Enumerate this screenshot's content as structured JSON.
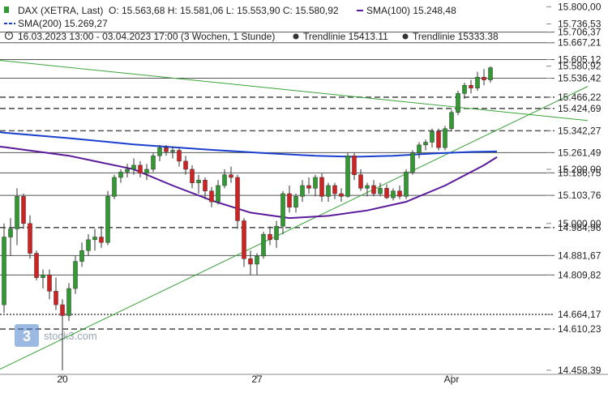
{
  "header": {
    "instrument": "DAX (XETRA, Last)",
    "ohlc": "O: 15.563,68  H: 15.581,06  L: 15.553,90  C: 15.580,92",
    "sma100": "SMA(100)  15.248,48",
    "sma200": "SMA(200)  15.269,27",
    "range": "16.03.2023 13:00 - 03.04.2023 17:00   (3 Wochen, 1 Stunde)",
    "trend1": "Trendlinie  15413.11",
    "trend2": "Trendlinie  15333.38"
  },
  "watermark": "stock3.com",
  "colors": {
    "up": "#2f9a2f",
    "down": "#d42020",
    "sma100": "#5a1a9a",
    "sma200": "#1a3fcf",
    "trend": "#3aa33a",
    "level": "#555555"
  },
  "chart_data": {
    "type": "candlestick",
    "y_range": [
      14440,
      15810
    ],
    "x_tick_labels": [
      {
        "label": "20",
        "bar": 9
      },
      {
        "label": "27",
        "bar": 39
      },
      {
        "label": "Apr",
        "bar": 69
      }
    ],
    "price_labels": [
      {
        "value": 15800.0,
        "label": "15.800,00"
      },
      {
        "value": 15736.53,
        "label": "15.736,53"
      },
      {
        "value": 15706.37,
        "label": "15.706,37"
      },
      {
        "value": 15667.21,
        "label": "15.667,21"
      },
      {
        "value": 15605.12,
        "label": "15.605,12"
      },
      {
        "value": 15580.92,
        "label": "15.580,92"
      },
      {
        "value": 15536.42,
        "label": "15.536,42"
      },
      {
        "value": 15466.22,
        "label": "15.466,22"
      },
      {
        "value": 15424.69,
        "label": "15.424,69"
      },
      {
        "value": 15342.27,
        "label": "15.342,27"
      },
      {
        "value": 15261.49,
        "label": "15.261,49"
      },
      {
        "value": 15200.0,
        "label": "15.200,00"
      },
      {
        "value": 15186.75,
        "label": "15.186,75"
      },
      {
        "value": 15103.76,
        "label": "15.103,76"
      },
      {
        "value": 15000.0,
        "label": "15.000,00"
      },
      {
        "value": 14984.96,
        "label": "14.984,96"
      },
      {
        "value": 14881.67,
        "label": "14.881,67"
      },
      {
        "value": 14809.82,
        "label": "14.809,82"
      },
      {
        "value": 14664.17,
        "label": "14.664,17"
      },
      {
        "value": 14610.23,
        "label": "14.610,23"
      },
      {
        "value": 14458.39,
        "label": "14.458,39"
      }
    ],
    "levels": [
      {
        "value": 15706.37,
        "style": "solid"
      },
      {
        "value": 15667.21,
        "style": "solid"
      },
      {
        "value": 15605.12,
        "style": "solid"
      },
      {
        "value": 15536.42,
        "style": "solid"
      },
      {
        "value": 15466.22,
        "style": "dashed"
      },
      {
        "value": 15424.69,
        "style": "dashed"
      },
      {
        "value": 15342.27,
        "style": "dashed"
      },
      {
        "value": 15261.49,
        "style": "solid"
      },
      {
        "value": 15186.75,
        "style": "solid"
      },
      {
        "value": 15103.76,
        "style": "solid"
      },
      {
        "value": 14984.96,
        "style": "dashed"
      },
      {
        "value": 14881.67,
        "style": "solid"
      },
      {
        "value": 14809.82,
        "style": "solid"
      },
      {
        "value": 14664.17,
        "style": "dotted"
      },
      {
        "value": 14610.23,
        "style": "dashed"
      }
    ],
    "trendlines": [
      {
        "name": "Trendlinie 15413.11",
        "from": {
          "bar": -8,
          "value": 15620
        },
        "to": {
          "bar": 90,
          "value": 15380
        }
      },
      {
        "name": "Trendlinie 15333.38",
        "from": {
          "bar": -1,
          "value": 14458
        },
        "to": {
          "bar": 90,
          "value": 15506
        }
      }
    ],
    "sma200": [
      [
        -8,
        15360
      ],
      [
        0,
        15335
      ],
      [
        10,
        15315
      ],
      [
        20,
        15292
      ],
      [
        30,
        15275
      ],
      [
        40,
        15260
      ],
      [
        48,
        15250
      ],
      [
        54,
        15246
      ],
      [
        60,
        15250
      ],
      [
        66,
        15258
      ],
      [
        72,
        15264
      ],
      [
        76,
        15266
      ]
    ],
    "sma100": [
      [
        -8,
        15300
      ],
      [
        0,
        15282
      ],
      [
        10,
        15250
      ],
      [
        20,
        15200
      ],
      [
        26,
        15140
      ],
      [
        32,
        15085
      ],
      [
        38,
        15040
      ],
      [
        44,
        15020
      ],
      [
        50,
        15028
      ],
      [
        56,
        15048
      ],
      [
        62,
        15080
      ],
      [
        68,
        15140
      ],
      [
        74,
        15215
      ],
      [
        76,
        15245
      ]
    ],
    "candles": [
      {
        "o": 14700,
        "h": 15000,
        "l": 14670,
        "c": 14950
      },
      {
        "o": 14950,
        "h": 15020,
        "l": 14880,
        "c": 14980
      },
      {
        "o": 14980,
        "h": 15130,
        "l": 14920,
        "c": 15100
      },
      {
        "o": 15100,
        "h": 15110,
        "l": 14980,
        "c": 15000
      },
      {
        "o": 15000,
        "h": 15030,
        "l": 14870,
        "c": 14890
      },
      {
        "o": 14890,
        "h": 14900,
        "l": 14790,
        "c": 14800
      },
      {
        "o": 14800,
        "h": 14830,
        "l": 14760,
        "c": 14810
      },
      {
        "o": 14810,
        "h": 14830,
        "l": 14720,
        "c": 14750
      },
      {
        "o": 14750,
        "h": 14800,
        "l": 14680,
        "c": 14700
      },
      {
        "o": 14700,
        "h": 14720,
        "l": 14458,
        "c": 14660
      },
      {
        "o": 14660,
        "h": 14780,
        "l": 14640,
        "c": 14760
      },
      {
        "o": 14760,
        "h": 14880,
        "l": 14740,
        "c": 14860
      },
      {
        "o": 14860,
        "h": 14930,
        "l": 14840,
        "c": 14900
      },
      {
        "o": 14900,
        "h": 14960,
        "l": 14880,
        "c": 14940
      },
      {
        "o": 14940,
        "h": 14980,
        "l": 14900,
        "c": 14950
      },
      {
        "o": 14950,
        "h": 14990,
        "l": 14910,
        "c": 14930
      },
      {
        "o": 14930,
        "h": 15120,
        "l": 14920,
        "c": 15100
      },
      {
        "o": 15100,
        "h": 15180,
        "l": 15090,
        "c": 15170
      },
      {
        "o": 15170,
        "h": 15200,
        "l": 15150,
        "c": 15190
      },
      {
        "o": 15190,
        "h": 15220,
        "l": 15170,
        "c": 15200
      },
      {
        "o": 15200,
        "h": 15240,
        "l": 15180,
        "c": 15215
      },
      {
        "o": 15215,
        "h": 15230,
        "l": 15170,
        "c": 15185
      },
      {
        "o": 15185,
        "h": 15220,
        "l": 15160,
        "c": 15200
      },
      {
        "o": 15200,
        "h": 15260,
        "l": 15190,
        "c": 15250
      },
      {
        "o": 15250,
        "h": 15290,
        "l": 15230,
        "c": 15280
      },
      {
        "o": 15280,
        "h": 15290,
        "l": 15250,
        "c": 15265
      },
      {
        "o": 15265,
        "h": 15285,
        "l": 15240,
        "c": 15270
      },
      {
        "o": 15270,
        "h": 15280,
        "l": 15210,
        "c": 15230
      },
      {
        "o": 15230,
        "h": 15250,
        "l": 15180,
        "c": 15200
      },
      {
        "o": 15200,
        "h": 15215,
        "l": 15130,
        "c": 15150
      },
      {
        "o": 15150,
        "h": 15180,
        "l": 15110,
        "c": 15160
      },
      {
        "o": 15160,
        "h": 15170,
        "l": 15090,
        "c": 15120
      },
      {
        "o": 15120,
        "h": 15135,
        "l": 15060,
        "c": 15080
      },
      {
        "o": 15080,
        "h": 15160,
        "l": 15070,
        "c": 15140
      },
      {
        "o": 15140,
        "h": 15200,
        "l": 15130,
        "c": 15180
      },
      {
        "o": 15180,
        "h": 15210,
        "l": 15150,
        "c": 15170
      },
      {
        "o": 15170,
        "h": 15180,
        "l": 14980,
        "c": 15010
      },
      {
        "o": 15010,
        "h": 15020,
        "l": 14840,
        "c": 14870
      },
      {
        "o": 14870,
        "h": 14900,
        "l": 14810,
        "c": 14850
      },
      {
        "o": 14850,
        "h": 14890,
        "l": 14810,
        "c": 14880
      },
      {
        "o": 14880,
        "h": 14970,
        "l": 14870,
        "c": 14960
      },
      {
        "o": 14960,
        "h": 14990,
        "l": 14920,
        "c": 14940
      },
      {
        "o": 14940,
        "h": 15010,
        "l": 14910,
        "c": 14990
      },
      {
        "o": 14990,
        "h": 15120,
        "l": 14960,
        "c": 15110
      },
      {
        "o": 15110,
        "h": 15140,
        "l": 15040,
        "c": 15060
      },
      {
        "o": 15060,
        "h": 15110,
        "l": 15040,
        "c": 15100
      },
      {
        "o": 15100,
        "h": 15160,
        "l": 15080,
        "c": 15140
      },
      {
        "o": 15140,
        "h": 15170,
        "l": 15110,
        "c": 15130
      },
      {
        "o": 15130,
        "h": 15180,
        "l": 15100,
        "c": 15170
      },
      {
        "o": 15170,
        "h": 15185,
        "l": 15080,
        "c": 15100
      },
      {
        "o": 15100,
        "h": 15150,
        "l": 15080,
        "c": 15140
      },
      {
        "o": 15140,
        "h": 15150,
        "l": 15090,
        "c": 15110
      },
      {
        "o": 15110,
        "h": 15130,
        "l": 15080,
        "c": 15100
      },
      {
        "o": 15100,
        "h": 15260,
        "l": 15095,
        "c": 15250
      },
      {
        "o": 15250,
        "h": 15260,
        "l": 15160,
        "c": 15180
      },
      {
        "o": 15180,
        "h": 15200,
        "l": 15120,
        "c": 15130
      },
      {
        "o": 15130,
        "h": 15150,
        "l": 15100,
        "c": 15140
      },
      {
        "o": 15140,
        "h": 15160,
        "l": 15100,
        "c": 15110
      },
      {
        "o": 15110,
        "h": 15150,
        "l": 15100,
        "c": 15130
      },
      {
        "o": 15130,
        "h": 15145,
        "l": 15090,
        "c": 15095
      },
      {
        "o": 15095,
        "h": 15130,
        "l": 15085,
        "c": 15120
      },
      {
        "o": 15120,
        "h": 15140,
        "l": 15090,
        "c": 15100
      },
      {
        "o": 15100,
        "h": 15200,
        "l": 15090,
        "c": 15190
      },
      {
        "o": 15190,
        "h": 15270,
        "l": 15180,
        "c": 15260
      },
      {
        "o": 15260,
        "h": 15300,
        "l": 15240,
        "c": 15290
      },
      {
        "o": 15290,
        "h": 15310,
        "l": 15270,
        "c": 15300
      },
      {
        "o": 15300,
        "h": 15350,
        "l": 15280,
        "c": 15340
      },
      {
        "o": 15340,
        "h": 15350,
        "l": 15270,
        "c": 15280
      },
      {
        "o": 15280,
        "h": 15360,
        "l": 15270,
        "c": 15350
      },
      {
        "o": 15350,
        "h": 15420,
        "l": 15340,
        "c": 15410
      },
      {
        "o": 15410,
        "h": 15490,
        "l": 15400,
        "c": 15480
      },
      {
        "o": 15480,
        "h": 15520,
        "l": 15460,
        "c": 15510
      },
      {
        "o": 15510,
        "h": 15530,
        "l": 15480,
        "c": 15500
      },
      {
        "o": 15500,
        "h": 15560,
        "l": 15490,
        "c": 15540
      },
      {
        "o": 15540,
        "h": 15570,
        "l": 15510,
        "c": 15530
      },
      {
        "o": 15530,
        "h": 15580,
        "l": 15520,
        "c": 15575
      }
    ]
  }
}
